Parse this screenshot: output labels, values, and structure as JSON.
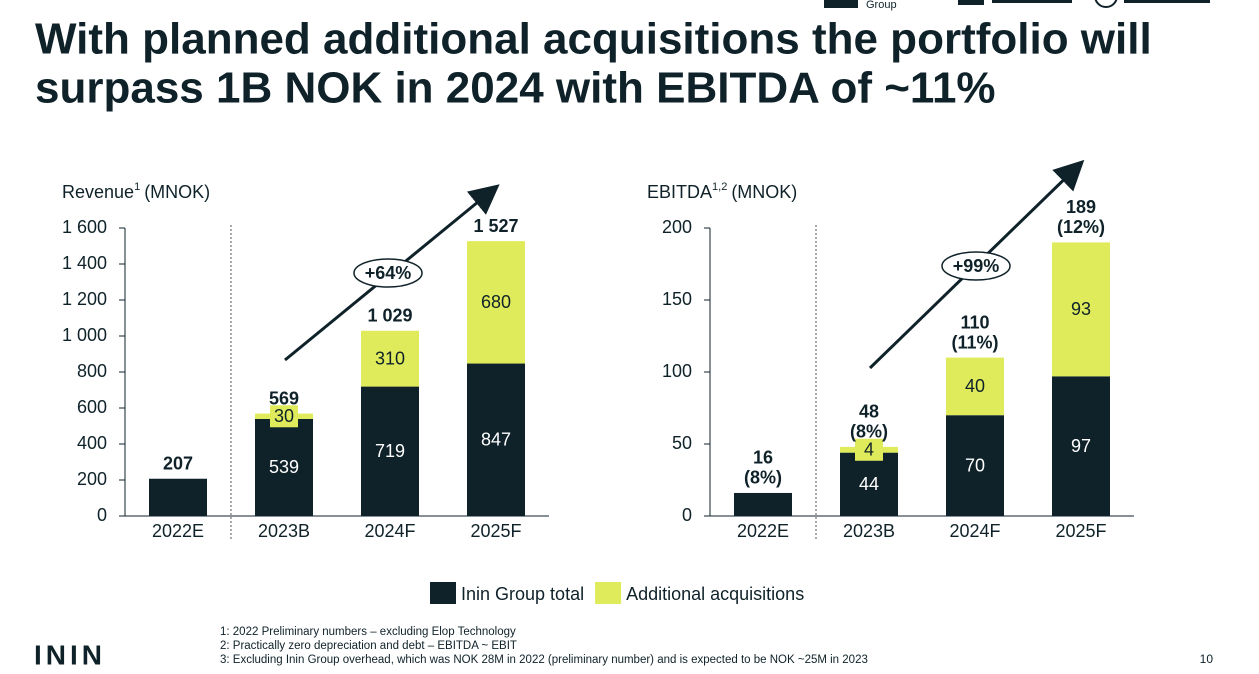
{
  "header": {
    "title_lines": [
      "With planned additional acquisitions the portfolio will",
      "surpass 1B NOK in 2024 with EBITDA of ~11%"
    ],
    "logo_text": "Group"
  },
  "chart_data": [
    {
      "type": "bar",
      "stacked": true,
      "y_label": {
        "name": "Revenue",
        "note": "1",
        "unit": "(MNOK)"
      },
      "categories": [
        "2022E",
        "2023B",
        "2024F",
        "2025F"
      ],
      "series": [
        {
          "name": "Inin Group total",
          "color": "#0f2229",
          "values": [
            207,
            539,
            719,
            847
          ]
        },
        {
          "name": "Additional acquisitions",
          "color": "#dfeb5a",
          "values": [
            null,
            30,
            310,
            680
          ]
        }
      ],
      "totals": [
        207,
        569,
        1029,
        1527
      ],
      "total_labels": [
        "207",
        "569",
        "1 029",
        "1 527"
      ],
      "annotation": "+64%",
      "ylim": [
        0,
        1600
      ],
      "yticks": [
        0,
        200,
        400,
        600,
        800,
        {
          "value": 1000,
          "label": "1 000"
        },
        {
          "value": 1200,
          "label": "1 200"
        },
        {
          "value": 1400,
          "label": "1 400"
        },
        {
          "value": 1600,
          "label": "1 600"
        }
      ]
    },
    {
      "type": "bar",
      "stacked": true,
      "y_label": {
        "name": "EBITDA",
        "note": "1,2",
        "unit": "(MNOK)"
      },
      "categories": [
        "2022E",
        "2023B",
        "2024F",
        "2025F"
      ],
      "series": [
        {
          "name": "Inin Group total",
          "color": "#0f2229",
          "values": [
            16,
            44,
            70,
            97
          ]
        },
        {
          "name": "Additional acquisitions",
          "color": "#dfeb5a",
          "values": [
            null,
            4,
            40,
            93
          ]
        }
      ],
      "totals": [
        16,
        48,
        110,
        189
      ],
      "margins": [
        8,
        8,
        11,
        12
      ],
      "margin_labels": [
        "(8%)",
        "(8%)",
        "(11%)",
        "(12%)"
      ],
      "annotation": "+99%",
      "ylim": [
        0,
        200
      ],
      "yticks": [
        0,
        50,
        100,
        150,
        200
      ]
    }
  ],
  "footnotes": [
    "1: 2022 Preliminary numbers – excluding Elop Technology",
    "2: Practically zero depreciation and debt – EBITDA ~ EBIT",
    "3: Excluding Inin Group overhead, which was NOK 28M in 2022 (preliminary number) and is expected to be NOK ~25M in 2023"
  ],
  "brand": "ININ",
  "page_number": "10"
}
